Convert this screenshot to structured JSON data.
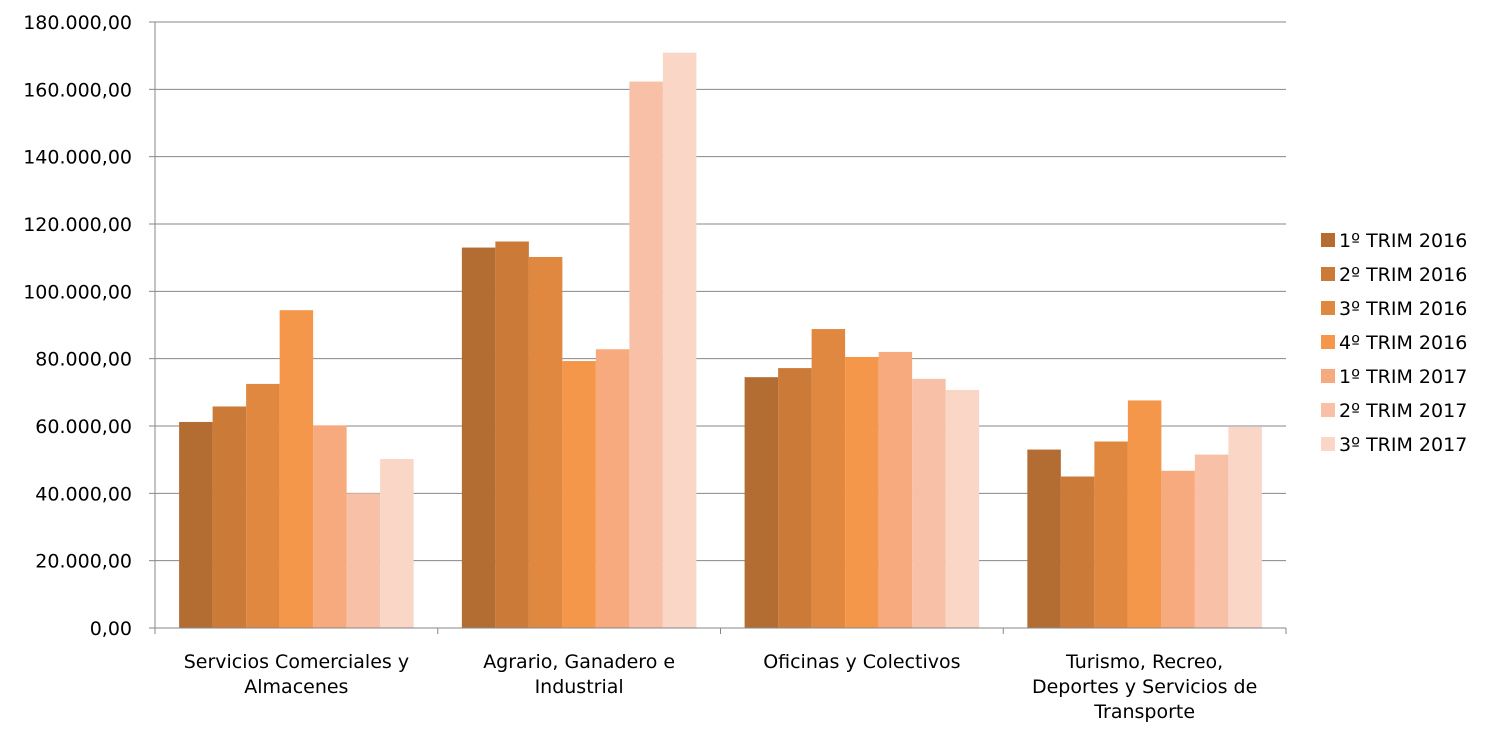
{
  "chart_data": {
    "type": "bar",
    "title": "",
    "xlabel": "",
    "ylabel": "",
    "categories": [
      [
        "Servicios Comerciales y",
        "Almacenes"
      ],
      [
        "Agrario, Ganadero e",
        "Industrial"
      ],
      [
        "Oficinas y Colectivos"
      ],
      [
        "Turismo, Recreo,",
        "Deportes y Servicios de",
        "Transporte"
      ]
    ],
    "ylim": [
      0,
      180000
    ],
    "y_tick_step": 20000,
    "y_ticks": [
      "0,00",
      "20.000,00",
      "40.000,00",
      "60.000,00",
      "80.000,00",
      "100.000,00",
      "120.000,00",
      "140.000,00",
      "160.000,00",
      "180.000,00"
    ],
    "grid": true,
    "legend_position": "right",
    "series": [
      {
        "name": "1º TRIM 2016",
        "color": "#b36d32",
        "values": [
          61200,
          113000,
          74500,
          53000
        ]
      },
      {
        "name": "2º TRIM 2016",
        "color": "#cc7a38",
        "values": [
          65800,
          114800,
          77200,
          45000
        ]
      },
      {
        "name": "3º TRIM 2016",
        "color": "#e08840",
        "values": [
          72500,
          110200,
          88800,
          55400
        ]
      },
      {
        "name": "4º TRIM 2016",
        "color": "#f5974a",
        "values": [
          94400,
          79300,
          80500,
          67600
        ]
      },
      {
        "name": "1º TRIM 2017",
        "color": "#f7aa7e",
        "values": [
          60200,
          82800,
          82000,
          46700
        ]
      },
      {
        "name": "2º TRIM 2017",
        "color": "#f8c0a6",
        "values": [
          40000,
          162300,
          74000,
          51500
        ]
      },
      {
        "name": "3º TRIM 2017",
        "color": "#f9d6c5",
        "values": [
          50200,
          170900,
          70700,
          59700
        ]
      }
    ]
  }
}
